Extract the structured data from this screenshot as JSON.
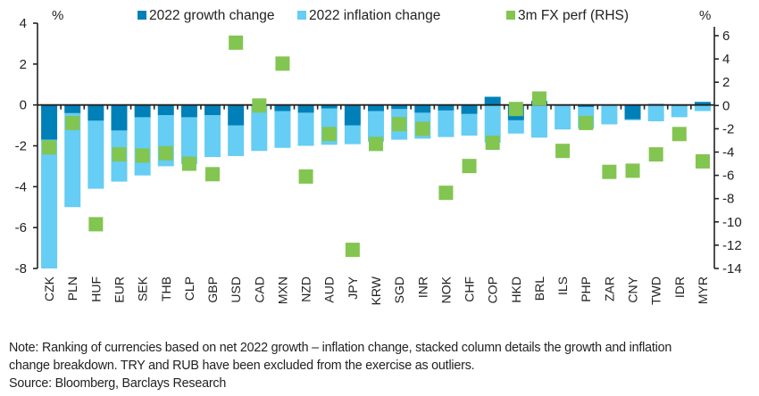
{
  "chart_data": {
    "type": "bar",
    "subtype": "stacked-column-with-scatter",
    "title": "",
    "ylabel_left": "%",
    "ylabel_right": "%",
    "ylim_left": [
      -8,
      4
    ],
    "yticks_left": [
      4,
      2,
      0,
      -2,
      -4,
      -6,
      -8
    ],
    "ylim_right": [
      -14,
      6
    ],
    "yticks_right": [
      6,
      4,
      2,
      0,
      -2,
      -4,
      -6,
      -8,
      -10,
      -12,
      -14
    ],
    "legend_position": "top",
    "categories": [
      "CZK",
      "PLN",
      "HUF",
      "EUR",
      "SEK",
      "THB",
      "CLP",
      "GBP",
      "USD",
      "CAD",
      "MXN",
      "NZD",
      "AUD",
      "JPY",
      "KRW",
      "SGD",
      "INR",
      "NOK",
      "CHF",
      "COP",
      "HKD",
      "BRL",
      "ILS",
      "PHP",
      "ZAR",
      "CNY",
      "TWD",
      "IDR",
      "MYR"
    ],
    "series": [
      {
        "name": "2022 growth change",
        "type": "bar",
        "axis": "left",
        "color": "#0080B8",
        "values": [
          -1.7,
          -0.4,
          -0.77,
          -1.25,
          -0.6,
          -0.5,
          -0.6,
          -0.5,
          -1.0,
          -0.05,
          -0.3,
          -0.38,
          -0.17,
          -1.0,
          -0.3,
          -0.2,
          -0.38,
          -0.27,
          -0.44,
          0.4,
          -0.75,
          0.2,
          0.0,
          -0.1,
          0.0,
          -0.7,
          0.05,
          -0.05,
          0.15
        ]
      },
      {
        "name": "2022 inflation change",
        "type": "bar",
        "axis": "left",
        "color": "#66CDF4",
        "values": [
          -6.3,
          -4.6,
          -3.33,
          -2.5,
          -2.85,
          -2.5,
          -2.3,
          -2.05,
          -1.5,
          -2.2,
          -1.8,
          -1.62,
          -1.78,
          -0.92,
          -1.5,
          -1.5,
          -1.27,
          -1.3,
          -1.06,
          -1.85,
          -0.65,
          -1.6,
          -1.2,
          -1.05,
          -0.95,
          -0.05,
          -0.8,
          -0.55,
          -0.3
        ]
      },
      {
        "name": "3m FX perf (RHS)",
        "type": "scatter",
        "axis": "right",
        "color": "#82C550",
        "values": [
          -3.6,
          -1.5,
          -10.2,
          -4.2,
          -4.3,
          -4.1,
          -5.0,
          -5.9,
          5.4,
          0.0,
          3.6,
          -6.1,
          -2.45,
          -12.4,
          -3.3,
          -1.6,
          -2.0,
          -7.5,
          -5.2,
          -3.2,
          -0.3,
          0.6,
          -3.9,
          -1.5,
          -5.7,
          -5.6,
          -4.2,
          -2.45,
          -4.8
        ]
      }
    ]
  },
  "notes": {
    "line1": "Note: Ranking of currencies based on net 2022 growth – inflation change, stacked column details the growth and inflation",
    "line2": "change breakdown. TRY and RUB have been excluded from the exercise as outliers.",
    "source": "Source: Bloomberg, Barclays Research"
  }
}
